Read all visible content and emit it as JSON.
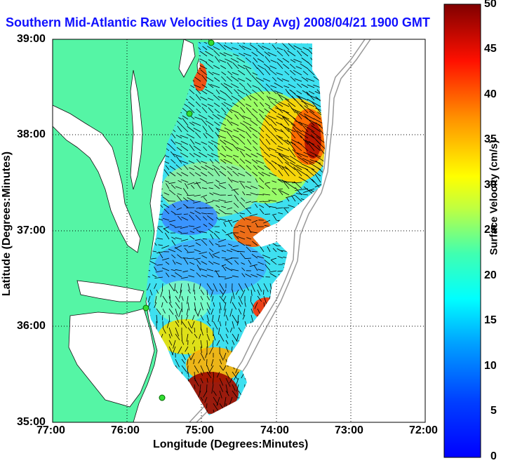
{
  "title": "Southern Mid-Atlantic Raw Velocities (1 Day Avg) 2008/04/21 1900 GMT",
  "x_axis": {
    "label": "Longitude (Degrees:Minutes)",
    "ticks": [
      "77:00",
      "76:00",
      "75:00",
      "74:00",
      "73:00",
      "72:00"
    ]
  },
  "y_axis": {
    "label": "Latitude (Degrees:Minutes)",
    "ticks": [
      "39:00",
      "38:00",
      "37:00",
      "36:00",
      "35:00"
    ]
  },
  "colorbar": {
    "label": "Surface Velocity (cm/s)",
    "ticks": [
      "50",
      "45",
      "40",
      "35",
      "30",
      "25",
      "20",
      "15",
      "10",
      "5",
      "0"
    ],
    "range": [
      0,
      50
    ],
    "colormap": "jet"
  },
  "colors": {
    "land": "#55f5a5",
    "title": "#1010ff",
    "station": "#33dd33",
    "bathymetry": "#999999"
  },
  "stations": 5
}
